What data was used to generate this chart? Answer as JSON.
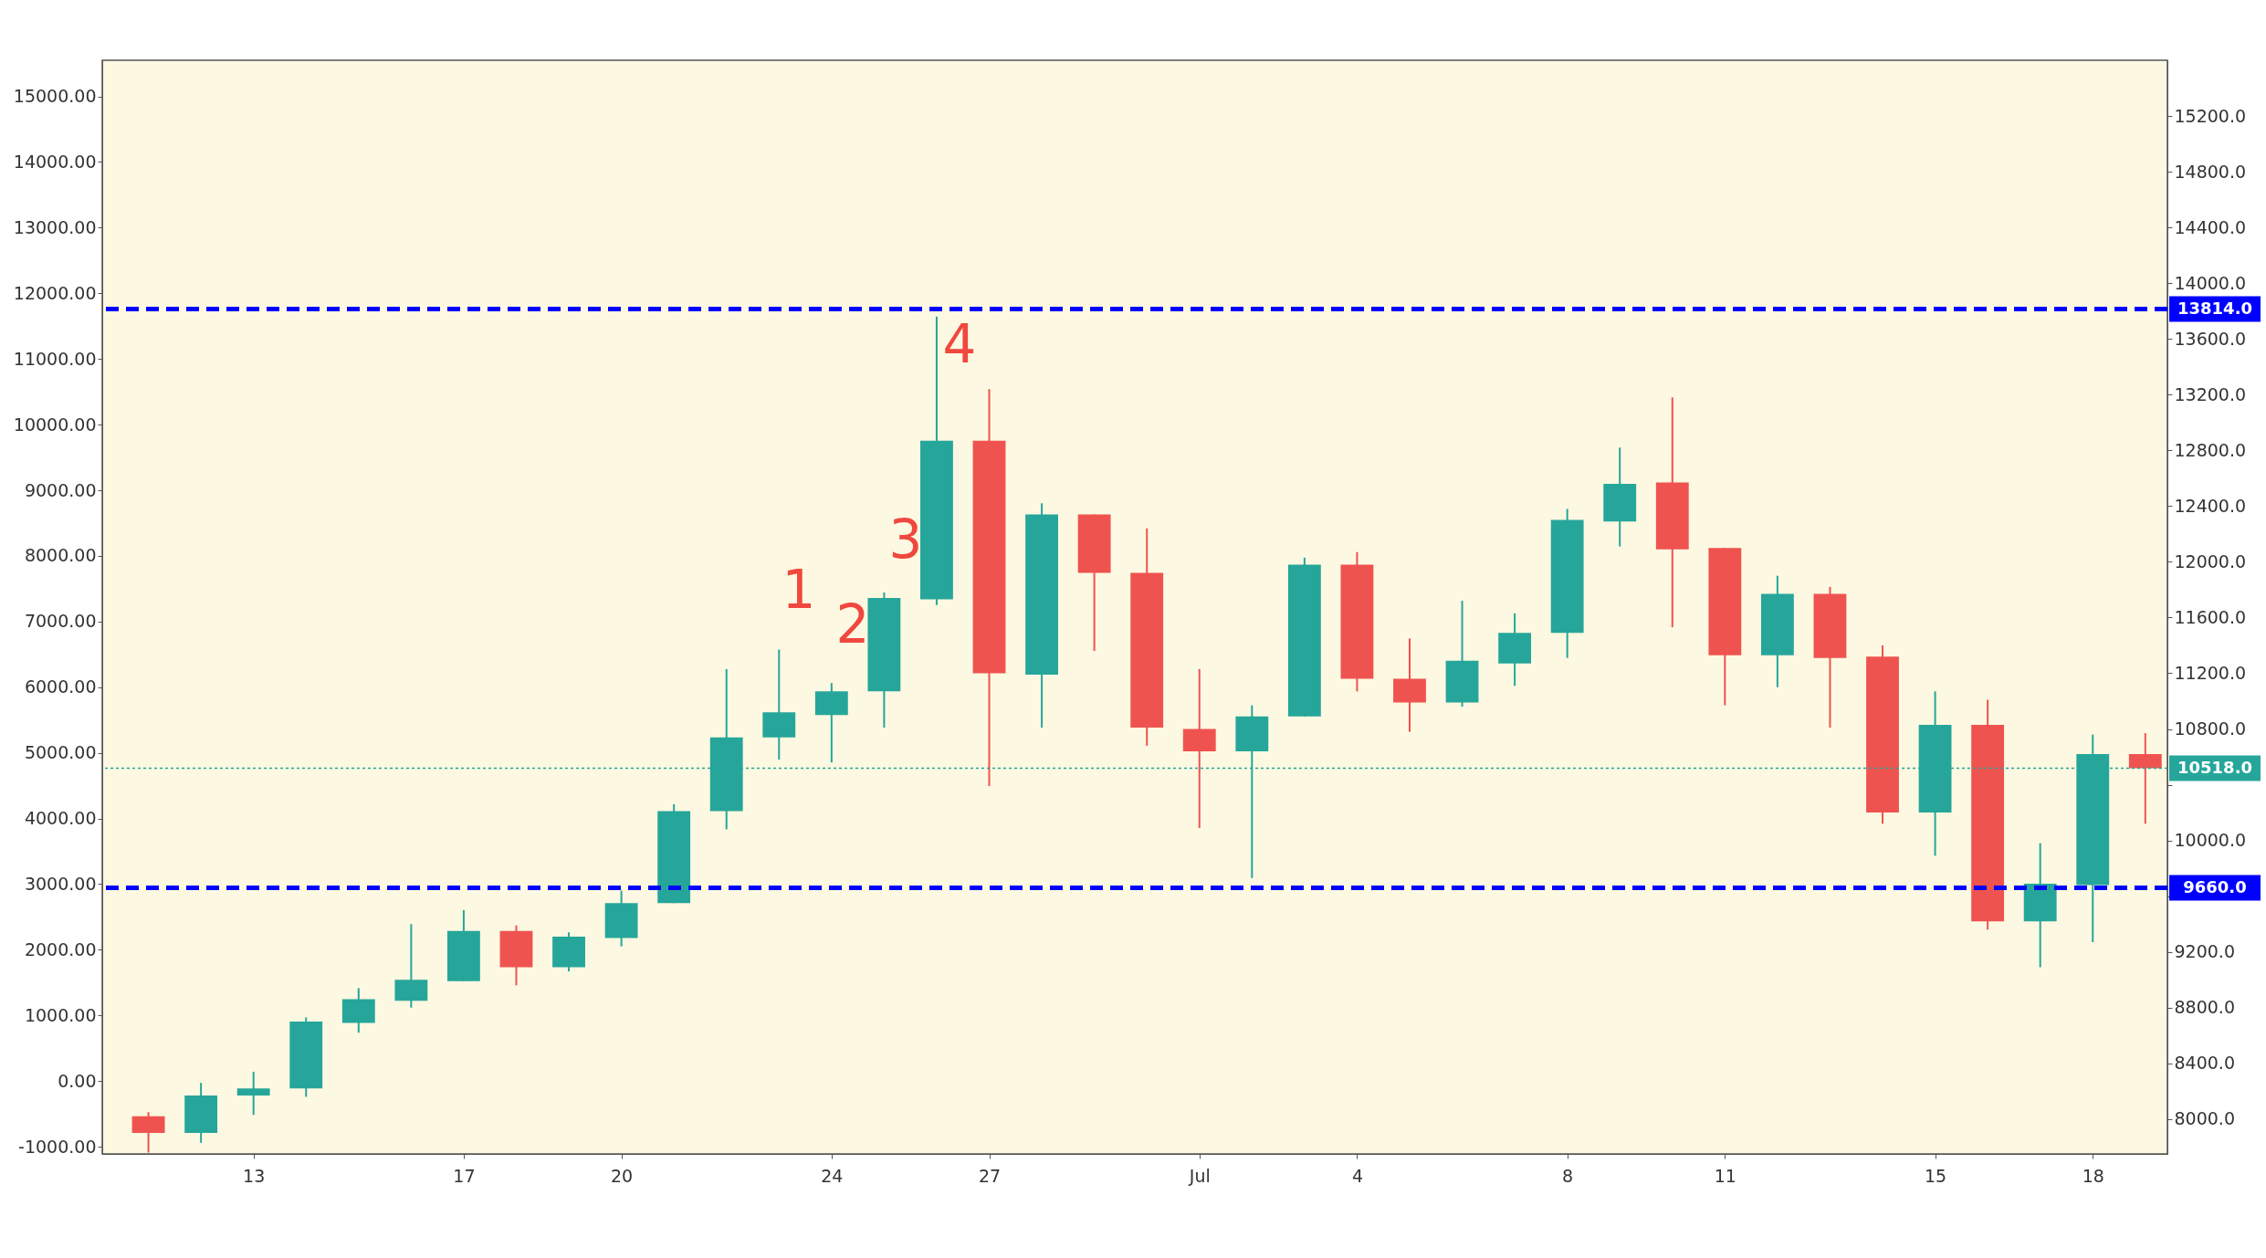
{
  "chart_data": {
    "type": "candlestick",
    "x": [
      "--06-11",
      "--06-12",
      "--06-13",
      "--06-14",
      "--06-15",
      "--06-16",
      "--06-17",
      "--06-18",
      "--06-19",
      "--06-20",
      "--06-21",
      "--06-22",
      "--06-23",
      "--06-24",
      "--06-25",
      "--06-26",
      "--06-27",
      "--06-28",
      "--06-29",
      "--06-30",
      "--07-01",
      "--07-02",
      "--07-03",
      "--07-04",
      "--07-05",
      "--07-06",
      "--07-07",
      "--07-08",
      "--07-09",
      "--07-10",
      "--07-11",
      "--07-12",
      "--07-13",
      "--07-14",
      "--07-15",
      "--07-16",
      "--07-17",
      "--07-18",
      "--07-19"
    ],
    "series": [
      {
        "axis": "y2",
        "ohlc": [
          [
            8020,
            8050,
            7760,
            7900
          ],
          [
            7900,
            8260,
            7830,
            8170
          ],
          [
            8170,
            8340,
            8030,
            8220
          ],
          [
            8220,
            8730,
            8160,
            8700
          ],
          [
            8690,
            8940,
            8620,
            8860
          ],
          [
            8850,
            9400,
            8800,
            9000
          ],
          [
            8990,
            9500,
            8990,
            9350
          ],
          [
            9350,
            9390,
            8960,
            9090
          ],
          [
            9090,
            9340,
            9060,
            9310
          ],
          [
            9300,
            9640,
            9240,
            9550
          ],
          [
            9550,
            10260,
            9550,
            10210
          ],
          [
            10210,
            11230,
            10080,
            10740
          ],
          [
            10740,
            11370,
            10580,
            10920
          ],
          [
            10900,
            11130,
            10560,
            11070
          ],
          [
            11070,
            11780,
            10810,
            11740
          ],
          [
            11730,
            13760,
            11690,
            12870
          ],
          [
            12870,
            13240,
            10390,
            11200
          ],
          [
            11190,
            12420,
            10810,
            12340
          ],
          [
            12340,
            12340,
            11360,
            11920
          ],
          [
            11920,
            12240,
            10680,
            10810
          ],
          [
            10800,
            11230,
            10090,
            10640
          ],
          [
            10640,
            10970,
            9730,
            10890
          ],
          [
            10890,
            12030,
            10890,
            11980
          ],
          [
            11980,
            12070,
            11070,
            11160
          ],
          [
            11160,
            11450,
            10780,
            10990
          ],
          [
            10990,
            11720,
            10960,
            11290
          ],
          [
            11270,
            11630,
            11110,
            11490
          ],
          [
            11490,
            12380,
            11310,
            12300
          ],
          [
            12290,
            12820,
            12110,
            12560
          ],
          [
            12570,
            13180,
            11530,
            12090
          ],
          [
            12100,
            12100,
            10970,
            11330
          ],
          [
            11330,
            11900,
            11100,
            11770
          ],
          [
            11770,
            11820,
            10810,
            11310
          ],
          [
            11320,
            11400,
            10120,
            10200
          ],
          [
            10200,
            11070,
            9890,
            10830
          ],
          [
            10830,
            11010,
            9360,
            9420
          ],
          [
            9420,
            9980,
            9090,
            9690
          ],
          [
            9680,
            10760,
            9270,
            10620
          ],
          [
            10620,
            10770,
            10120,
            10518
          ]
        ],
        "colors": [
          "#ef5350",
          "#26a69a",
          "#26a69a",
          "#26a69a",
          "#26a69a",
          "#26a69a",
          "#26a69a",
          "#ef5350",
          "#26a69a",
          "#26a69a",
          "#26a69a",
          "#26a69a",
          "#26a69a",
          "#26a69a",
          "#26a69a",
          "#26a69a",
          "#ef5350",
          "#26a69a",
          "#ef5350",
          "#ef5350",
          "#ef5350",
          "#26a69a",
          "#26a69a",
          "#ef5350",
          "#ef5350",
          "#26a69a",
          "#26a69a",
          "#26a69a",
          "#26a69a",
          "#ef5350",
          "#ef5350",
          "#26a69a",
          "#ef5350",
          "#ef5350",
          "#26a69a",
          "#ef5350",
          "#26a69a",
          "#26a69a",
          "#ef5350"
        ]
      }
    ],
    "xlim": [
      "--06-10T05:00",
      "--07-19T08:00"
    ],
    "xticks": [
      {
        "value": "--06-13",
        "label": "13"
      },
      {
        "value": "--06-17",
        "label": "17"
      },
      {
        "value": "--06-20",
        "label": "20"
      },
      {
        "value": "--06-24",
        "label": "24"
      },
      {
        "value": "--06-27",
        "label": "27"
      },
      {
        "value": "--07-01",
        "label": "Jul"
      },
      {
        "value": "--07-04",
        "label": "4"
      },
      {
        "value": "--07-08",
        "label": "8"
      },
      {
        "value": "--07-11",
        "label": "11"
      },
      {
        "value": "--07-15",
        "label": "15"
      },
      {
        "value": "--07-18",
        "label": "18"
      }
    ],
    "ylim": [
      -1110,
      15550
    ],
    "yticks": [
      {
        "value": -1000,
        "label": "-1000.00"
      },
      {
        "value": 0,
        "label": "0.00"
      },
      {
        "value": 1000,
        "label": "1000.00"
      },
      {
        "value": 2000,
        "label": "2000.00"
      },
      {
        "value": 3000,
        "label": "3000.00"
      },
      {
        "value": 4000,
        "label": "4000.00"
      },
      {
        "value": 5000,
        "label": "5000.00"
      },
      {
        "value": 6000,
        "label": "6000.00"
      },
      {
        "value": 7000,
        "label": "7000.00"
      },
      {
        "value": 8000,
        "label": "8000.00"
      },
      {
        "value": 9000,
        "label": "9000.00"
      },
      {
        "value": 10000,
        "label": "10000.00"
      },
      {
        "value": 11000,
        "label": "11000.00"
      },
      {
        "value": 12000,
        "label": "12000.00"
      },
      {
        "value": 13000,
        "label": "13000.00"
      },
      {
        "value": 14000,
        "label": "14000.00"
      },
      {
        "value": 15000,
        "label": "15000.00"
      }
    ],
    "y2lim": [
      7750,
      15600
    ],
    "y2ticks": [
      {
        "value": 8000,
        "label": "8000.0"
      },
      {
        "value": 8400,
        "label": "8400.0"
      },
      {
        "value": 8800,
        "label": "8800.0"
      },
      {
        "value": 9200,
        "label": "9200.0"
      },
      {
        "value": 9600,
        "label": null
      },
      {
        "value": 10000,
        "label": "10000.0"
      },
      {
        "value": 10400,
        "label": null
      },
      {
        "value": 10800,
        "label": "10800.0"
      },
      {
        "value": 11200,
        "label": "11200.0"
      },
      {
        "value": 11600,
        "label": "11600.0"
      },
      {
        "value": 12000,
        "label": "12000.0"
      },
      {
        "value": 12400,
        "label": "12400.0"
      },
      {
        "value": 12800,
        "label": "12800.0"
      },
      {
        "value": 13200,
        "label": "13200.0"
      },
      {
        "value": 13600,
        "label": "13600.0"
      },
      {
        "value": 14000,
        "label": "14000.0"
      },
      {
        "value": 14400,
        "label": "14400.0"
      },
      {
        "value": 14800,
        "label": "14800.0"
      },
      {
        "value": 15200,
        "label": "15200.0"
      }
    ],
    "ref_lines": [
      {
        "axis": "y2",
        "value": 13814,
        "label": "13814.0",
        "color": "#0000ff",
        "line_style": "dashed"
      },
      {
        "axis": "y2",
        "value": 9660,
        "label": "9660.0",
        "color": "#0000ff",
        "line_style": "dashed"
      },
      {
        "axis": "y2",
        "value": 10518,
        "label": "10518.0",
        "color": "#26a69a",
        "line_style": "dotted"
      }
    ],
    "annotations": [
      "1",
      "2",
      "3",
      "4"
    ],
    "grid": false
  }
}
